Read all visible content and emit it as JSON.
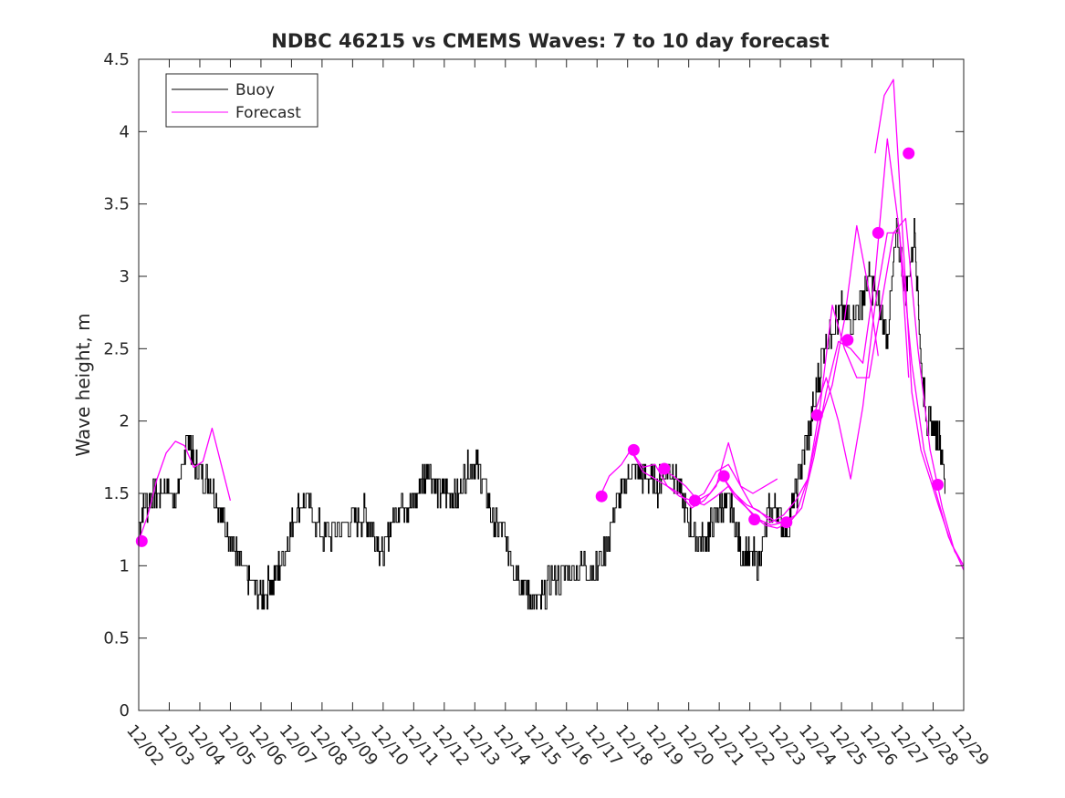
{
  "chart_data": {
    "type": "line",
    "title": "NDBC 46215 vs CMEMS Waves: 7 to 10 day forecast",
    "xlabel": "",
    "ylabel": "Wave height, m",
    "xlim": [
      0,
      27
    ],
    "ylim": [
      0,
      4.5
    ],
    "yticks": [
      "0",
      "0.5",
      "1",
      "1.5",
      "2",
      "2.5",
      "3",
      "3.5",
      "4",
      "4.5"
    ],
    "ytick_values": [
      0,
      0.5,
      1,
      1.5,
      2,
      2.5,
      3,
      3.5,
      4,
      4.5
    ],
    "xtick_labels": [
      "12/02",
      "12/03",
      "12/04",
      "12/05",
      "12/06",
      "12/07",
      "12/08",
      "12/09",
      "12/10",
      "12/11",
      "12/12",
      "12/13",
      "12/14",
      "12/15",
      "12/16",
      "12/17",
      "12/18",
      "12/19",
      "12/20",
      "12/21",
      "12/22",
      "12/23",
      "12/24",
      "12/25",
      "12/26",
      "12/27",
      "12/28",
      "12/29"
    ],
    "legend": [
      "Buoy",
      "Forecast"
    ],
    "legend_position": "top-left",
    "colors": {
      "buoy": "#000000",
      "forecast": "#ff00ff",
      "axes": "#262626"
    },
    "series": [
      {
        "name": "Buoy",
        "x": [
          0,
          0.3,
          0.6,
          0.9,
          1.2,
          1.5,
          1.65,
          1.8,
          2.1,
          2.4,
          2.7,
          3.0,
          3.3,
          3.6,
          4.0,
          4.4,
          4.8,
          5.1,
          5.5,
          6.0,
          6.5,
          7.0,
          7.4,
          7.7,
          8.0,
          8.3,
          8.6,
          8.9,
          9.2,
          9.5,
          9.8,
          10.1,
          10.4,
          10.7,
          11.0,
          11.3,
          11.6,
          11.9,
          12.2,
          12.5,
          12.8,
          13.1,
          13.5,
          14.0,
          14.5,
          15.0,
          15.5,
          15.8,
          16.1,
          16.4,
          16.7,
          17.0,
          17.3,
          17.6,
          17.9,
          18.2,
          18.5,
          18.8,
          19.1,
          19.4,
          19.7,
          20.0,
          20.3,
          20.6,
          20.9,
          21.2,
          21.5,
          21.8,
          22.1,
          22.4,
          22.7,
          23.0,
          23.3,
          23.6,
          23.9,
          24.2,
          24.5,
          24.8,
          25.1,
          25.4,
          25.6,
          25.8,
          26.0,
          26.2,
          26.4
        ],
        "values": [
          1.3,
          1.45,
          1.5,
          1.55,
          1.45,
          1.75,
          1.9,
          1.7,
          1.6,
          1.55,
          1.35,
          1.2,
          1.0,
          0.9,
          0.8,
          0.9,
          1.1,
          1.35,
          1.45,
          1.2,
          1.25,
          1.3,
          1.35,
          1.25,
          1.05,
          1.3,
          1.45,
          1.4,
          1.55,
          1.7,
          1.5,
          1.5,
          1.45,
          1.65,
          1.75,
          1.55,
          1.3,
          1.25,
          1.05,
          0.9,
          0.8,
          0.75,
          0.9,
          0.95,
          1.0,
          0.98,
          1.3,
          1.5,
          1.65,
          1.65,
          1.6,
          1.55,
          1.7,
          1.6,
          1.35,
          1.2,
          1.15,
          1.3,
          1.45,
          1.4,
          1.1,
          1.05,
          1.05,
          1.35,
          1.4,
          1.25,
          1.5,
          1.8,
          2.1,
          2.5,
          2.65,
          2.75,
          2.7,
          2.8,
          3.0,
          2.8,
          2.6,
          3.3,
          2.9,
          3.3,
          2.4,
          2.0,
          1.95,
          1.9,
          1.55
        ]
      },
      {
        "name": "Forecast",
        "segments": [
          {
            "x": [
              0,
              0.3,
              0.6,
              0.9,
              1.2,
              1.5,
              1.8,
              2.1,
              2.4,
              2.7,
              3.0
            ],
            "values": [
              1.17,
              1.35,
              1.6,
              1.78,
              1.86,
              1.83,
              1.68,
              1.72,
              1.95,
              1.7,
              1.45
            ]
          },
          {
            "x": [
              15.1,
              15.4,
              15.8,
              16.1,
              16.5,
              16.9,
              17.3,
              17.7,
              18.1,
              18.5,
              18.9,
              19.3,
              19.7,
              20.1,
              20.5,
              20.9
            ],
            "values": [
              1.48,
              1.62,
              1.7,
              1.8,
              1.68,
              1.7,
              1.55,
              1.5,
              1.4,
              1.45,
              1.55,
              1.85,
              1.55,
              1.5,
              1.55,
              1.6
            ]
          },
          {
            "x": [
              16.1,
              16.5,
              16.9,
              17.3,
              17.7,
              18.1,
              18.5,
              18.9,
              19.3,
              19.7,
              20.1,
              20.5,
              20.9,
              21.3
            ],
            "values": [
              1.8,
              1.65,
              1.6,
              1.55,
              1.48,
              1.45,
              1.42,
              1.48,
              1.55,
              1.45,
              1.35,
              1.28,
              1.26,
              1.3
            ]
          },
          {
            "x": [
              17.1,
              17.5,
              17.9,
              18.3,
              18.7,
              19.1,
              19.5,
              19.9,
              20.3,
              20.7,
              21.1,
              21.5,
              21.9,
              22.3,
              22.7,
              23.1,
              23.5,
              23.9,
              24.2
            ],
            "values": [
              1.67,
              1.62,
              1.55,
              1.45,
              1.5,
              1.62,
              1.48,
              1.4,
              1.32,
              1.28,
              1.3,
              1.35,
              1.6,
              2.0,
              2.25,
              2.7,
              3.35,
              2.9,
              2.45
            ]
          },
          {
            "x": [
              18.1,
              18.5,
              18.9,
              19.3,
              19.7,
              20.1,
              20.5,
              20.9,
              21.3,
              21.7,
              22.1,
              22.5,
              22.9,
              23.3,
              23.7,
              24.1,
              24.5,
              24.9,
              25.2
            ],
            "values": [
              1.45,
              1.5,
              1.65,
              1.7,
              1.55,
              1.4,
              1.35,
              1.3,
              1.3,
              1.4,
              1.75,
              2.2,
              2.55,
              2.5,
              2.4,
              3.0,
              3.95,
              3.3,
              2.3
            ]
          },
          {
            "x": [
              19.1,
              19.5,
              19.9,
              20.3,
              20.7,
              21.1,
              21.5,
              21.9,
              22.3,
              22.7,
              23.1,
              23.5,
              23.9,
              24.3,
              24.7,
              25.1,
              25.5,
              25.9,
              26.3,
              26.7,
              27.0
            ],
            "values": [
              1.62,
              1.5,
              1.42,
              1.38,
              1.3,
              1.35,
              1.45,
              1.6,
              2.1,
              2.8,
              2.5,
              2.3,
              2.3,
              2.8,
              3.3,
              3.4,
              2.5,
              1.8,
              1.4,
              1.1,
              1.0
            ]
          },
          {
            "x": [
              22.1,
              22.5,
              22.9,
              23.3,
              23.7,
              24.1,
              24.5,
              24.9,
              25.3,
              25.7,
              26.1,
              26.5,
              27.0
            ],
            "values": [
              2.04,
              2.3,
              2.0,
              1.6,
              2.1,
              2.8,
              3.3,
              3.3,
              2.4,
              1.8,
              1.5,
              1.2,
              0.97
            ]
          },
          {
            "x": [
              24.1,
              24.4,
              24.7,
              25.0,
              25.3,
              25.6,
              25.9,
              26.2,
              26.6,
              27.0
            ],
            "values": [
              3.85,
              4.25,
              4.36,
              3.3,
              2.2,
              1.8,
              1.6,
              1.4,
              1.15,
              1.0
            ]
          }
        ]
      }
    ],
    "markers": {
      "name": "Forecast start points",
      "x": [
        0.1,
        15.15,
        16.2,
        17.2,
        18.2,
        19.15,
        20.15,
        21.2,
        22.2,
        23.2,
        24.2,
        25.2,
        26.15
      ],
      "values": [
        1.17,
        1.48,
        1.8,
        1.67,
        1.45,
        1.62,
        1.32,
        1.3,
        2.04,
        2.56,
        3.3,
        3.85,
        1.56
      ]
    }
  }
}
